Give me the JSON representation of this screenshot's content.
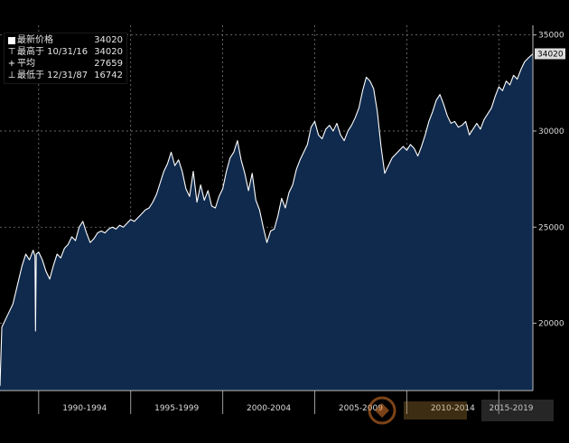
{
  "legend": {
    "rows": [
      {
        "symbol": "box",
        "label": "最新价格",
        "value": "34020"
      },
      {
        "symbol": "⊤",
        "label": "最高于 10/31/16",
        "value": "34020"
      },
      {
        "symbol": "+",
        "label": "平均",
        "value": "27659"
      },
      {
        "symbol": "⊥",
        "label": "最低于 12/31/87",
        "value": "16742"
      }
    ]
  },
  "last_value_badge": "34020",
  "colors": {
    "background": "#000000",
    "area_fill": "#0f2a4d",
    "line": "#ffffff",
    "grid": "#7a7a7a",
    "badge": "#dcdcdc"
  },
  "chart_data": {
    "type": "area",
    "y_axis_side": "right",
    "ylim": [
      16500,
      35500
    ],
    "y_ticks": [
      {
        "value": 20000,
        "label": "20000"
      },
      {
        "value": 25000,
        "label": "25000"
      },
      {
        "value": 30000,
        "label": "30000"
      },
      {
        "value": 35000,
        "label": "35000"
      }
    ],
    "x_range": [
      1987.9,
      2016.85
    ],
    "x_periods": [
      {
        "label": "1990-1994",
        "start": 1990,
        "end": 1995
      },
      {
        "label": "1995-1999",
        "start": 1995,
        "end": 2000
      },
      {
        "label": "2000-2004",
        "start": 2000,
        "end": 2005
      },
      {
        "label": "2005-2009",
        "start": 2005,
        "end": 2010
      },
      {
        "label": "2010-2014",
        "start": 2010,
        "end": 2015
      },
      {
        "label": "2015-2019",
        "start": 2015,
        "end": 2020
      }
    ],
    "grid": true,
    "series": [
      {
        "values": [
          [
            1987.9,
            16742
          ],
          [
            1988.0,
            19800
          ],
          [
            1988.3,
            20400
          ],
          [
            1988.6,
            21000
          ],
          [
            1988.9,
            22200
          ],
          [
            1989.1,
            23000
          ],
          [
            1989.3,
            23600
          ],
          [
            1989.5,
            23300
          ],
          [
            1989.7,
            23800
          ],
          [
            1989.8,
            23500
          ],
          [
            1989.83,
            19600
          ],
          [
            1989.87,
            23600
          ],
          [
            1990.0,
            23700
          ],
          [
            1990.2,
            23300
          ],
          [
            1990.4,
            22700
          ],
          [
            1990.6,
            22300
          ],
          [
            1990.8,
            23000
          ],
          [
            1991.0,
            23600
          ],
          [
            1991.2,
            23400
          ],
          [
            1991.4,
            23900
          ],
          [
            1991.6,
            24100
          ],
          [
            1991.8,
            24500
          ],
          [
            1992.0,
            24300
          ],
          [
            1992.2,
            25000
          ],
          [
            1992.4,
            25300
          ],
          [
            1992.6,
            24700
          ],
          [
            1992.8,
            24200
          ],
          [
            1993.0,
            24400
          ],
          [
            1993.2,
            24700
          ],
          [
            1993.4,
            24800
          ],
          [
            1993.6,
            24700
          ],
          [
            1993.8,
            24900
          ],
          [
            1994.0,
            25000
          ],
          [
            1994.2,
            24900
          ],
          [
            1994.4,
            25100
          ],
          [
            1994.6,
            25000
          ],
          [
            1994.8,
            25200
          ],
          [
            1995.0,
            25400
          ],
          [
            1995.2,
            25300
          ],
          [
            1995.4,
            25500
          ],
          [
            1995.6,
            25700
          ],
          [
            1995.8,
            25900
          ],
          [
            1996.0,
            26000
          ],
          [
            1996.2,
            26300
          ],
          [
            1996.4,
            26700
          ],
          [
            1996.6,
            27300
          ],
          [
            1996.8,
            27900
          ],
          [
            1997.0,
            28300
          ],
          [
            1997.2,
            28900
          ],
          [
            1997.4,
            28200
          ],
          [
            1997.6,
            28500
          ],
          [
            1997.8,
            27900
          ],
          [
            1998.0,
            27000
          ],
          [
            1998.2,
            26600
          ],
          [
            1998.4,
            27900
          ],
          [
            1998.6,
            26300
          ],
          [
            1998.8,
            27200
          ],
          [
            1999.0,
            26400
          ],
          [
            1999.2,
            26900
          ],
          [
            1999.4,
            26100
          ],
          [
            1999.6,
            26000
          ],
          [
            1999.8,
            26600
          ],
          [
            2000.0,
            27000
          ],
          [
            2000.2,
            27900
          ],
          [
            2000.4,
            28600
          ],
          [
            2000.6,
            28900
          ],
          [
            2000.8,
            29500
          ],
          [
            2001.0,
            28500
          ],
          [
            2001.2,
            27800
          ],
          [
            2001.4,
            26900
          ],
          [
            2001.6,
            27800
          ],
          [
            2001.8,
            26400
          ],
          [
            2002.0,
            25900
          ],
          [
            2002.2,
            25000
          ],
          [
            2002.4,
            24200
          ],
          [
            2002.6,
            24800
          ],
          [
            2002.8,
            24900
          ],
          [
            2003.0,
            25600
          ],
          [
            2003.2,
            26500
          ],
          [
            2003.4,
            26000
          ],
          [
            2003.6,
            26800
          ],
          [
            2003.8,
            27200
          ],
          [
            2004.0,
            28000
          ],
          [
            2004.2,
            28500
          ],
          [
            2004.4,
            28900
          ],
          [
            2004.6,
            29300
          ],
          [
            2004.8,
            30200
          ],
          [
            2005.0,
            30500
          ],
          [
            2005.2,
            29800
          ],
          [
            2005.4,
            29600
          ],
          [
            2005.6,
            30100
          ],
          [
            2005.8,
            30300
          ],
          [
            2006.0,
            30000
          ],
          [
            2006.2,
            30400
          ],
          [
            2006.4,
            29800
          ],
          [
            2006.6,
            29500
          ],
          [
            2006.8,
            30000
          ],
          [
            2007.0,
            30300
          ],
          [
            2007.2,
            30700
          ],
          [
            2007.4,
            31200
          ],
          [
            2007.6,
            32100
          ],
          [
            2007.8,
            32800
          ],
          [
            2008.0,
            32600
          ],
          [
            2008.2,
            32200
          ],
          [
            2008.4,
            31000
          ],
          [
            2008.6,
            29200
          ],
          [
            2008.8,
            27800
          ],
          [
            2009.0,
            28200
          ],
          [
            2009.2,
            28600
          ],
          [
            2009.4,
            28800
          ],
          [
            2009.6,
            29000
          ],
          [
            2009.8,
            29200
          ],
          [
            2010.0,
            29000
          ],
          [
            2010.2,
            29300
          ],
          [
            2010.4,
            29100
          ],
          [
            2010.6,
            28700
          ],
          [
            2010.8,
            29200
          ],
          [
            2011.0,
            29800
          ],
          [
            2011.2,
            30500
          ],
          [
            2011.4,
            31000
          ],
          [
            2011.6,
            31600
          ],
          [
            2011.8,
            31900
          ],
          [
            2012.0,
            31400
          ],
          [
            2012.2,
            30800
          ],
          [
            2012.4,
            30400
          ],
          [
            2012.6,
            30500
          ],
          [
            2012.8,
            30200
          ],
          [
            2013.0,
            30300
          ],
          [
            2013.2,
            30500
          ],
          [
            2013.4,
            29800
          ],
          [
            2013.6,
            30100
          ],
          [
            2013.8,
            30400
          ],
          [
            2014.0,
            30100
          ],
          [
            2014.2,
            30600
          ],
          [
            2014.4,
            30900
          ],
          [
            2014.6,
            31200
          ],
          [
            2014.8,
            31800
          ],
          [
            2015.0,
            32300
          ],
          [
            2015.2,
            32100
          ],
          [
            2015.4,
            32600
          ],
          [
            2015.6,
            32400
          ],
          [
            2015.8,
            32900
          ],
          [
            2016.0,
            32700
          ],
          [
            2016.2,
            33200
          ],
          [
            2016.4,
            33600
          ],
          [
            2016.6,
            33800
          ],
          [
            2016.85,
            34020
          ]
        ]
      }
    ]
  }
}
